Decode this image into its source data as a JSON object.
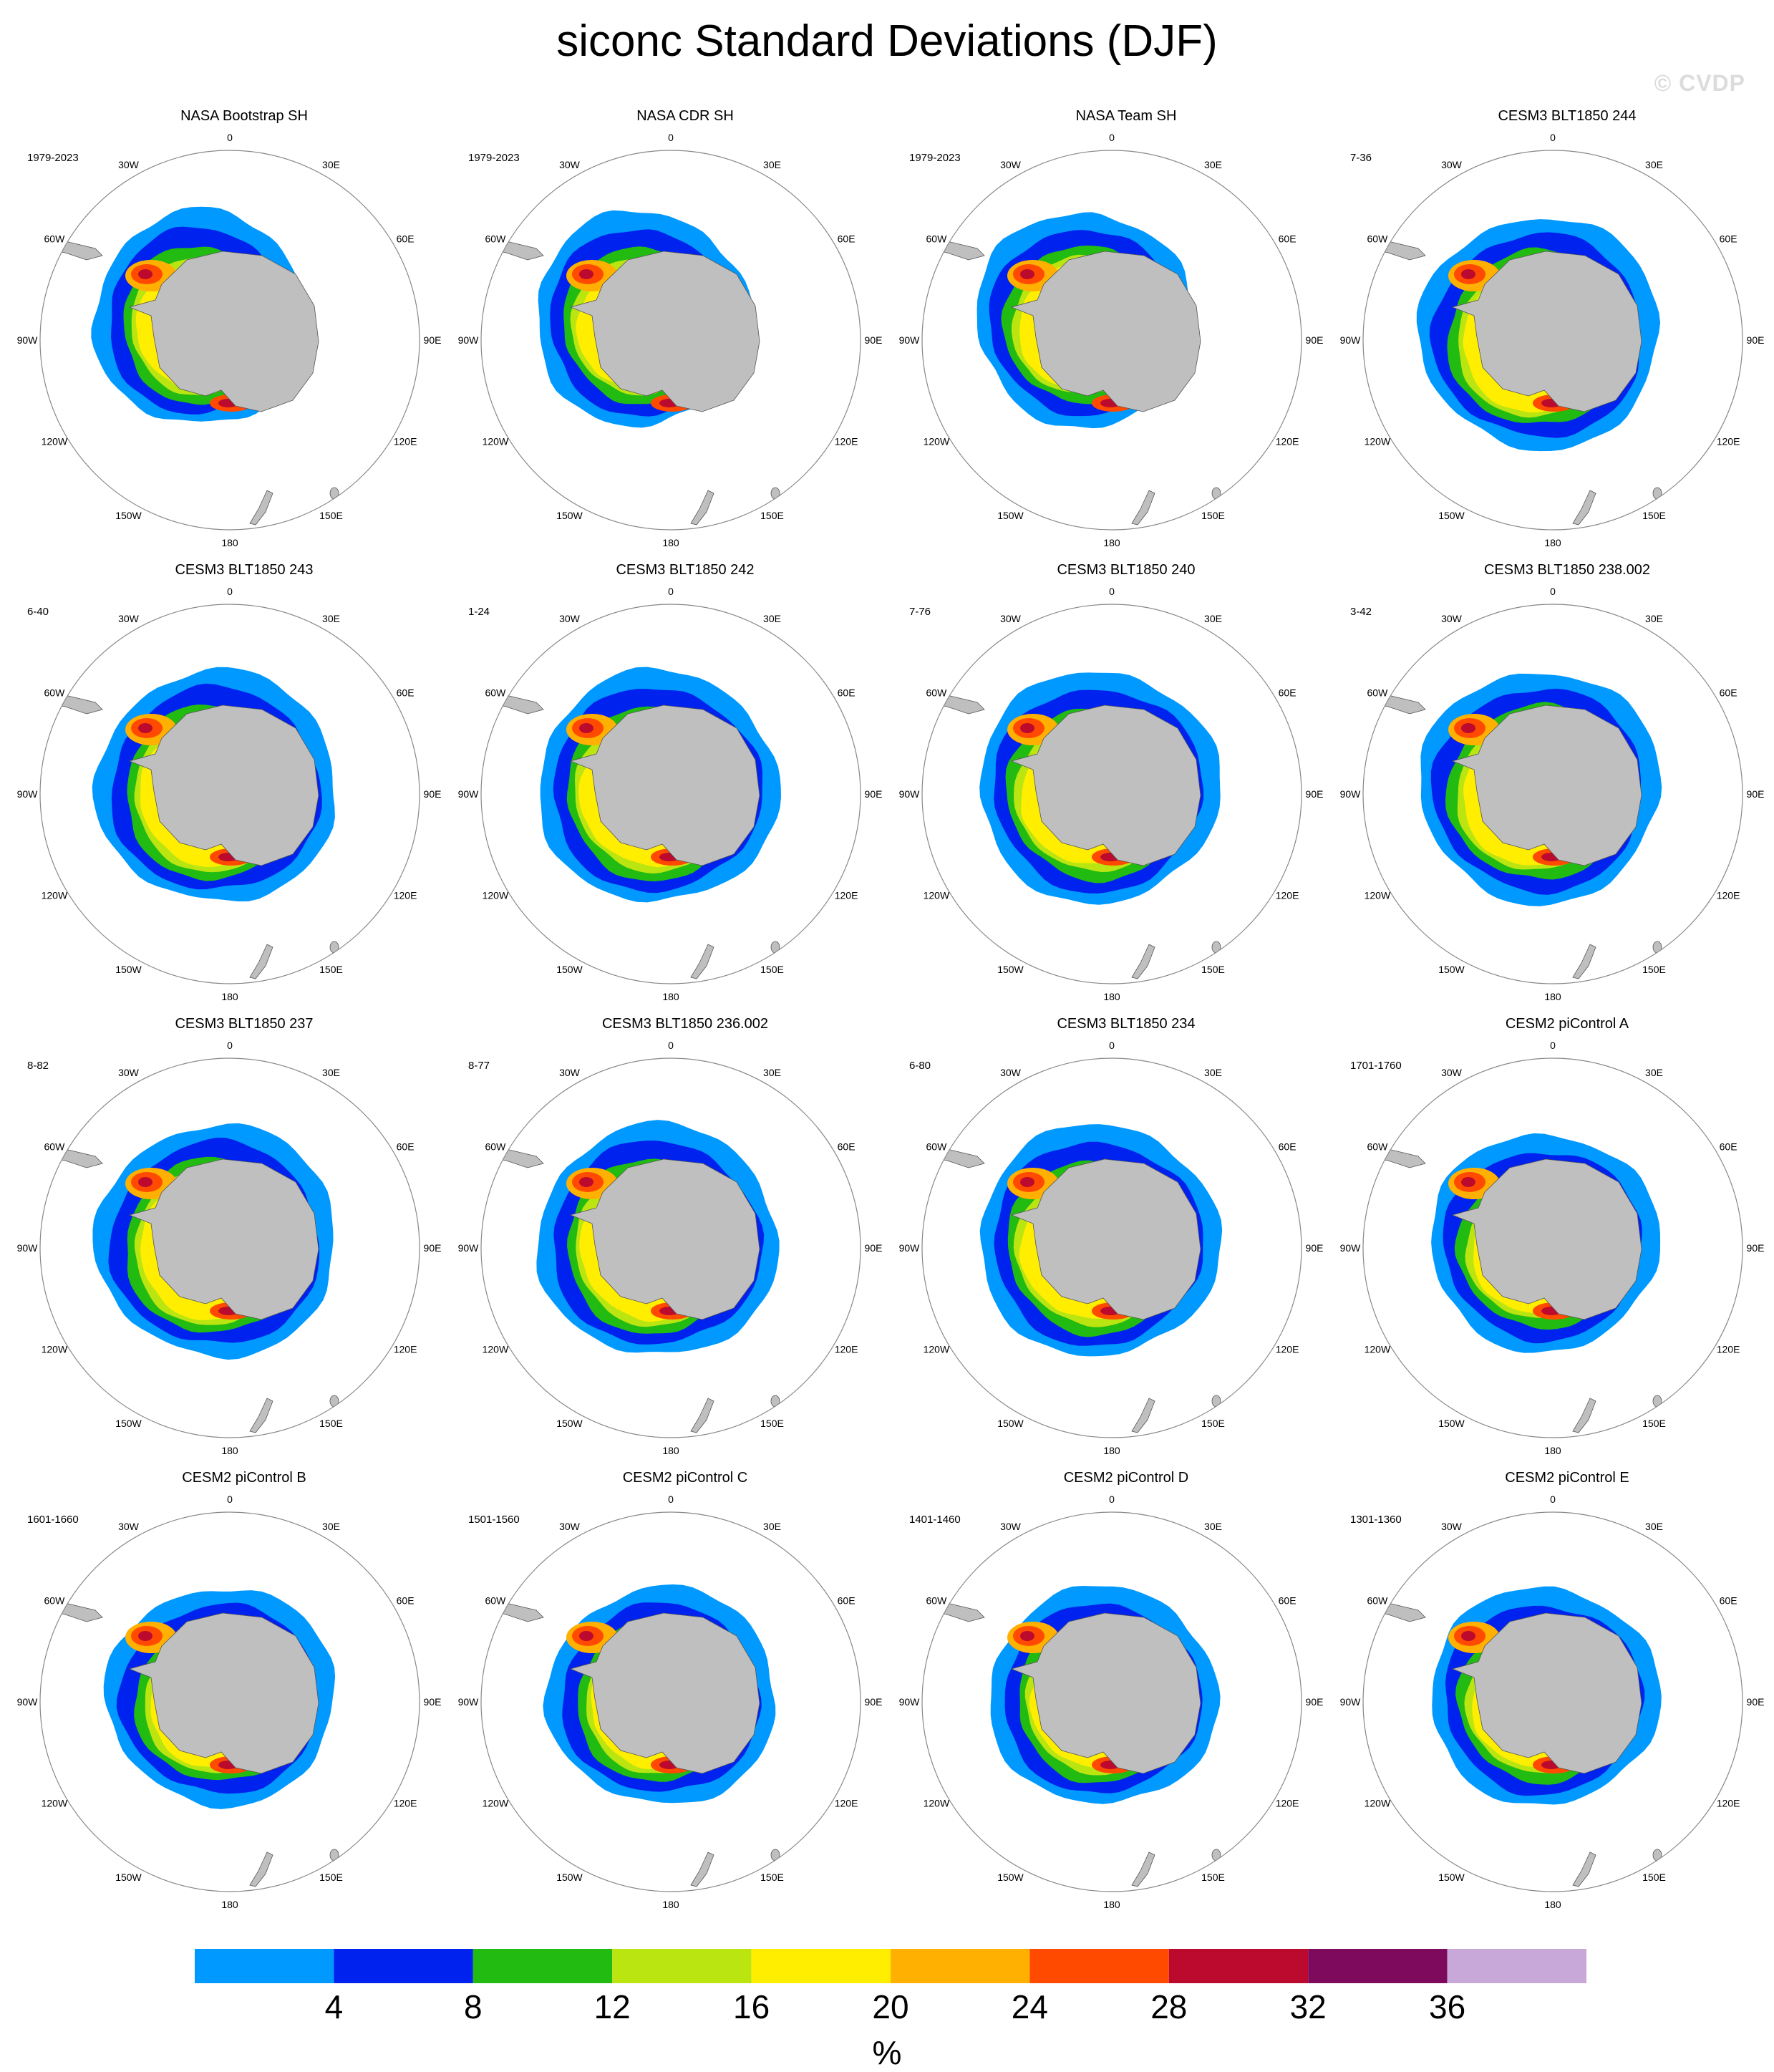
{
  "title": "siconc Standard Deviations (DJF)",
  "watermark": "© CVDP",
  "variable": "siconc",
  "season": "DJF",
  "units": "%",
  "longitude_labels": [
    "0",
    "30E",
    "60E",
    "90E",
    "120E",
    "150E",
    "180",
    "150W",
    "120W",
    "90W",
    "60W",
    "30W"
  ],
  "panels": [
    {
      "title": "NASA Bootstrap SH",
      "period": "1979-2023",
      "style": "obs"
    },
    {
      "title": "NASA CDR SH",
      "period": "1979-2023",
      "style": "obs"
    },
    {
      "title": "NASA Team SH",
      "period": "1979-2023",
      "style": "obs"
    },
    {
      "title": "CESM3 BLT1850 244",
      "period": "7-36",
      "style": "cesm3"
    },
    {
      "title": "CESM3 BLT1850 243",
      "period": "6-40",
      "style": "cesm3"
    },
    {
      "title": "CESM3 BLT1850 242",
      "period": "1-24",
      "style": "cesm3"
    },
    {
      "title": "CESM3 BLT1850 240",
      "period": "7-76",
      "style": "cesm3"
    },
    {
      "title": "CESM3 BLT1850 238.002",
      "period": "3-42",
      "style": "cesm3"
    },
    {
      "title": "CESM3 BLT1850 237",
      "period": "8-82",
      "style": "cesm3"
    },
    {
      "title": "CESM3 BLT1850 236.002",
      "period": "8-77",
      "style": "cesm3"
    },
    {
      "title": "CESM3 BLT1850 234",
      "period": "6-80",
      "style": "cesm3"
    },
    {
      "title": "CESM2 piControl A",
      "period": "1701-1760",
      "style": "cesm2"
    },
    {
      "title": "CESM2 piControl B",
      "period": "1601-1660",
      "style": "cesm2"
    },
    {
      "title": "CESM2 piControl C",
      "period": "1501-1560",
      "style": "cesm2"
    },
    {
      "title": "CESM2 piControl D",
      "period": "1401-1460",
      "style": "cesm2"
    },
    {
      "title": "CESM2 piControl E",
      "period": "1301-1360",
      "style": "cesm2"
    }
  ],
  "colorbar": {
    "tick_labels": [
      "4",
      "8",
      "12",
      "16",
      "20",
      "24",
      "28",
      "32",
      "36"
    ],
    "colors": [
      "#0099FF",
      "#0022EE",
      "#22BB11",
      "#BBE511",
      "#FFEE00",
      "#FFB000",
      "#FF4A00",
      "#BB0A2E",
      "#7E0A5E",
      "#C8A8D8"
    ]
  },
  "colors": {
    "land": "#BFBFBF",
    "circle": "#888888"
  }
}
